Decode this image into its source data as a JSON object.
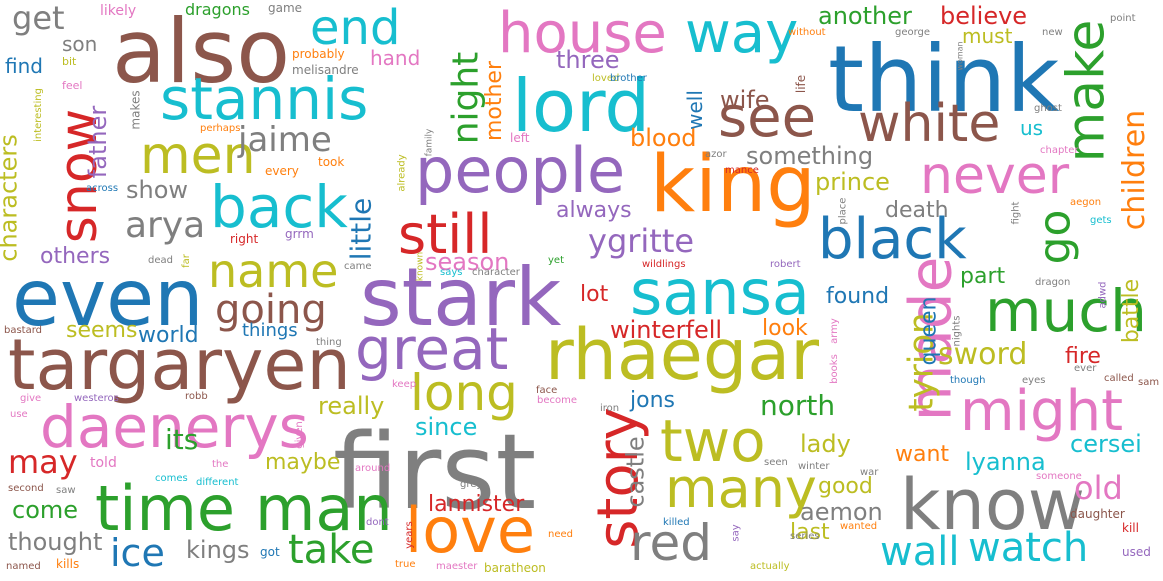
{
  "palette": {
    "blue": "#1f77b4",
    "orange": "#ff7f0e",
    "green": "#2ca02c",
    "red": "#d62728",
    "purple": "#9467bd",
    "brown": "#8c564b",
    "pink": "#e377c2",
    "gray": "#7f7f7f",
    "olive": "#bcbd22",
    "cyan": "#17becf"
  },
  "words": [
    {
      "text": "first",
      "color": "gray"
    },
    {
      "text": "think",
      "color": "blue"
    },
    {
      "text": "also",
      "color": "brown"
    },
    {
      "text": "king",
      "color": "orange"
    },
    {
      "text": "stark",
      "color": "purple"
    },
    {
      "text": "targaryen",
      "color": "brown"
    },
    {
      "text": "even",
      "color": "blue"
    },
    {
      "text": "rhaegar",
      "color": "olive"
    },
    {
      "text": "sansa",
      "color": "cyan"
    },
    {
      "text": "lord",
      "color": "cyan"
    },
    {
      "text": "know",
      "color": "gray"
    },
    {
      "text": "time",
      "color": "green"
    },
    {
      "text": "man",
      "color": "green"
    },
    {
      "text": "love",
      "color": "orange"
    },
    {
      "text": "people",
      "color": "purple"
    },
    {
      "text": "stannis",
      "color": "cyan"
    },
    {
      "text": "daenerys",
      "color": "pink"
    },
    {
      "text": "house",
      "color": "pink"
    },
    {
      "text": "great",
      "color": "purple"
    },
    {
      "text": "much",
      "color": "green"
    },
    {
      "text": "might",
      "color": "pink"
    },
    {
      "text": "made",
      "color": "pink"
    },
    {
      "text": "black",
      "color": "blue"
    },
    {
      "text": "story",
      "color": "red"
    },
    {
      "text": "two",
      "color": "olive"
    },
    {
      "text": "many",
      "color": "olive"
    },
    {
      "text": "way",
      "color": "cyan"
    },
    {
      "text": "back",
      "color": "cyan"
    },
    {
      "text": "snow",
      "color": "red"
    },
    {
      "text": "white",
      "color": "brown"
    },
    {
      "text": "see",
      "color": "brown"
    },
    {
      "text": "never",
      "color": "pink"
    },
    {
      "text": "still",
      "color": "red"
    },
    {
      "text": "men",
      "color": "olive"
    },
    {
      "text": "make",
      "color": "green"
    },
    {
      "text": "long",
      "color": "olive"
    },
    {
      "text": "name",
      "color": "olive"
    },
    {
      "text": "end",
      "color": "cyan"
    },
    {
      "text": "red",
      "color": "gray"
    },
    {
      "text": "watch",
      "color": "cyan"
    },
    {
      "text": "take",
      "color": "green"
    },
    {
      "text": "wall",
      "color": "cyan"
    },
    {
      "text": "go",
      "color": "green"
    },
    {
      "text": "going",
      "color": "brown"
    },
    {
      "text": "ice",
      "color": "blue"
    },
    {
      "text": "night",
      "color": "green"
    },
    {
      "text": "tyrion",
      "color": "olive"
    },
    {
      "text": "arya",
      "color": "gray"
    },
    {
      "text": "jaime",
      "color": "gray"
    },
    {
      "text": "ygritte",
      "color": "purple"
    },
    {
      "text": "children",
      "color": "orange"
    },
    {
      "text": "sword",
      "color": "olive"
    },
    {
      "text": "may",
      "color": "red"
    },
    {
      "text": "old",
      "color": "pink"
    },
    {
      "text": "three",
      "color": "purple"
    },
    {
      "text": "get",
      "color": "gray"
    },
    {
      "text": "something",
      "color": "gray"
    },
    {
      "text": "show",
      "color": "gray"
    },
    {
      "text": "its",
      "color": "green"
    },
    {
      "text": "little",
      "color": "blue"
    },
    {
      "text": "prince",
      "color": "olive"
    },
    {
      "text": "wife",
      "color": "brown"
    },
    {
      "text": "another",
      "color": "green"
    },
    {
      "text": "believe",
      "color": "red"
    },
    {
      "text": "kings",
      "color": "gray"
    },
    {
      "text": "come",
      "color": "green"
    },
    {
      "text": "really",
      "color": "olive"
    },
    {
      "text": "north",
      "color": "green"
    },
    {
      "text": "since",
      "color": "cyan"
    },
    {
      "text": "lady",
      "color": "olive"
    },
    {
      "text": "lyanna",
      "color": "cyan"
    },
    {
      "text": "cersei",
      "color": "cyan"
    },
    {
      "text": "thought",
      "color": "gray"
    },
    {
      "text": "winterfell",
      "color": "red"
    },
    {
      "text": "characters",
      "color": "olive"
    },
    {
      "text": "father",
      "color": "purple"
    },
    {
      "text": "season",
      "color": "pink"
    },
    {
      "text": "blood",
      "color": "orange"
    },
    {
      "text": "mother",
      "color": "orange"
    },
    {
      "text": "castle",
      "color": "gray"
    },
    {
      "text": "battle",
      "color": "olive"
    },
    {
      "text": "lannister",
      "color": "red"
    },
    {
      "text": "maybe",
      "color": "olive"
    },
    {
      "text": "good",
      "color": "olive"
    },
    {
      "text": "aemon",
      "color": "gray"
    },
    {
      "text": "queen",
      "color": "blue"
    },
    {
      "text": "last",
      "color": "olive"
    },
    {
      "text": "death",
      "color": "gray"
    },
    {
      "text": "fire",
      "color": "red"
    },
    {
      "text": "part",
      "color": "green"
    },
    {
      "text": "found",
      "color": "blue"
    },
    {
      "text": "lot",
      "color": "red"
    },
    {
      "text": "look",
      "color": "orange"
    },
    {
      "text": "always",
      "color": "purple"
    },
    {
      "text": "world",
      "color": "blue"
    },
    {
      "text": "others",
      "color": "purple"
    },
    {
      "text": "seems",
      "color": "olive"
    },
    {
      "text": "jons",
      "color": "blue"
    },
    {
      "text": "want",
      "color": "orange"
    },
    {
      "text": "must",
      "color": "olive"
    },
    {
      "text": "hand",
      "color": "pink"
    },
    {
      "text": "son",
      "color": "gray"
    },
    {
      "text": "find",
      "color": "blue"
    },
    {
      "text": "well",
      "color": "blue"
    },
    {
      "text": "us",
      "color": "cyan"
    },
    {
      "text": "things",
      "color": "blue"
    },
    {
      "text": "told",
      "color": "pink"
    },
    {
      "text": "likely",
      "color": "pink"
    },
    {
      "text": "dragons",
      "color": "green"
    },
    {
      "text": "game",
      "color": "gray"
    },
    {
      "text": "probably",
      "color": "orange"
    },
    {
      "text": "melisandre",
      "color": "gray"
    },
    {
      "text": "bit",
      "color": "olive"
    },
    {
      "text": "feel",
      "color": "pink"
    },
    {
      "text": "makes",
      "color": "gray"
    },
    {
      "text": "loved",
      "color": "olive"
    },
    {
      "text": "brother",
      "color": "blue"
    },
    {
      "text": "without",
      "color": "orange"
    },
    {
      "text": "george",
      "color": "gray"
    },
    {
      "text": "point",
      "color": "gray"
    },
    {
      "text": "new",
      "color": "gray"
    },
    {
      "text": "interesting",
      "color": "olive"
    },
    {
      "text": "perhaps",
      "color": "orange"
    },
    {
      "text": "left",
      "color": "pink"
    },
    {
      "text": "azor",
      "color": "gray"
    },
    {
      "text": "mance",
      "color": "red"
    },
    {
      "text": "chapter",
      "color": "pink"
    },
    {
      "text": "aegon",
      "color": "orange"
    },
    {
      "text": "gets",
      "color": "cyan"
    },
    {
      "text": "took",
      "color": "orange"
    },
    {
      "text": "every",
      "color": "orange"
    },
    {
      "text": "across",
      "color": "blue"
    },
    {
      "text": "right",
      "color": "red"
    },
    {
      "text": "grrm",
      "color": "purple"
    },
    {
      "text": "dead",
      "color": "gray"
    },
    {
      "text": "far",
      "color": "olive"
    },
    {
      "text": "came",
      "color": "gray"
    },
    {
      "text": "known",
      "color": "olive"
    },
    {
      "text": "says",
      "color": "cyan"
    },
    {
      "text": "character",
      "color": "gray"
    },
    {
      "text": "yet",
      "color": "green"
    },
    {
      "text": "wildlings",
      "color": "red"
    },
    {
      "text": "robert",
      "color": "purple"
    },
    {
      "text": "dragon",
      "color": "gray"
    },
    {
      "text": "adwd",
      "color": "purple"
    },
    {
      "text": "bastard",
      "color": "brown"
    },
    {
      "text": "thing",
      "color": "gray"
    },
    {
      "text": "face",
      "color": "brown"
    },
    {
      "text": "army",
      "color": "pink"
    },
    {
      "text": "nights",
      "color": "gray"
    },
    {
      "text": "though",
      "color": "blue"
    },
    {
      "text": "eyes",
      "color": "gray"
    },
    {
      "text": "ever",
      "color": "gray"
    },
    {
      "text": "called",
      "color": "brown"
    },
    {
      "text": "sam",
      "color": "brown"
    },
    {
      "text": "give",
      "color": "pink"
    },
    {
      "text": "westeros",
      "color": "purple"
    },
    {
      "text": "robb",
      "color": "brown"
    },
    {
      "text": "keep",
      "color": "pink"
    },
    {
      "text": "become",
      "color": "pink"
    },
    {
      "text": "iron",
      "color": "gray"
    },
    {
      "text": "books",
      "color": "pink"
    },
    {
      "text": "use",
      "color": "pink"
    },
    {
      "text": "given",
      "color": "pink"
    },
    {
      "text": "around",
      "color": "pink"
    },
    {
      "text": "the",
      "color": "pink"
    },
    {
      "text": "comes",
      "color": "cyan"
    },
    {
      "text": "different",
      "color": "cyan"
    },
    {
      "text": "seen",
      "color": "gray"
    },
    {
      "text": "winter",
      "color": "gray"
    },
    {
      "text": "war",
      "color": "gray"
    },
    {
      "text": "someone",
      "color": "pink"
    },
    {
      "text": "second",
      "color": "brown"
    },
    {
      "text": "saw",
      "color": "gray"
    },
    {
      "text": "grey",
      "color": "gray"
    },
    {
      "text": "killed",
      "color": "blue"
    },
    {
      "text": "dont",
      "color": "purple"
    },
    {
      "text": "years",
      "color": "red"
    },
    {
      "text": "need",
      "color": "orange"
    },
    {
      "text": "say",
      "color": "purple"
    },
    {
      "text": "series",
      "color": "gray"
    },
    {
      "text": "wanted",
      "color": "orange"
    },
    {
      "text": "daughter",
      "color": "brown"
    },
    {
      "text": "kill",
      "color": "red"
    },
    {
      "text": "used",
      "color": "purple"
    },
    {
      "text": "named",
      "color": "brown"
    },
    {
      "text": "kills",
      "color": "orange"
    },
    {
      "text": "got",
      "color": "blue"
    },
    {
      "text": "true",
      "color": "orange"
    },
    {
      "text": "maester",
      "color": "pink"
    },
    {
      "text": "baratheon",
      "color": "olive"
    },
    {
      "text": "actually",
      "color": "olive"
    },
    {
      "text": "fight",
      "color": "gray"
    },
    {
      "text": "place",
      "color": "gray"
    },
    {
      "text": "already",
      "color": "olive"
    },
    {
      "text": "family",
      "color": "gray"
    },
    {
      "text": "life",
      "color": "brown"
    },
    {
      "text": "woman",
      "color": "gray"
    },
    {
      "text": "ghost",
      "color": "gray"
    }
  ]
}
